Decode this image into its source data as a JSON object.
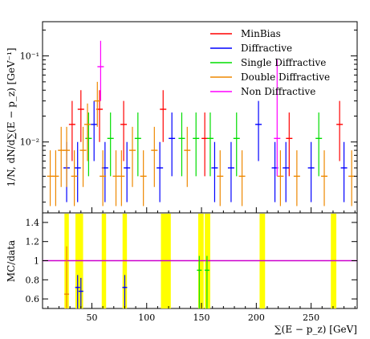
{
  "chart_data": {
    "type": "scatter",
    "title": "",
    "xlabel": "∑(E − p_z) [GeV]",
    "ylabel": "1/N, dN/d∑(E − p_z) [GeV⁻¹]",
    "ratio_ylabel": "MC/data",
    "xlim": [
      5,
      292
    ],
    "ylim": [
      0.0015,
      0.25
    ],
    "yscale": "log",
    "ratio_ylim": [
      0.5,
      1.5
    ],
    "x_ticks": [
      {
        "value": 50,
        "label": "50"
      },
      {
        "value": 100,
        "label": "100"
      },
      {
        "value": 150,
        "label": "150"
      },
      {
        "value": 200,
        "label": "200"
      },
      {
        "value": 250,
        "label": "250"
      }
    ],
    "y_ticks": [
      {
        "value": 0.01,
        "label": "10⁻²"
      },
      {
        "value": 0.1,
        "label": "10⁻¹"
      }
    ],
    "ratio_ticks": [
      {
        "value": 0.6,
        "label": "0.6"
      },
      {
        "value": 0.8,
        "label": "0.8"
      },
      {
        "value": 1.0,
        "label": "1"
      },
      {
        "value": 1.2,
        "label": "1.2"
      },
      {
        "value": 1.4,
        "label": "1.4"
      }
    ],
    "legend_position": "top-right",
    "series": [
      {
        "name": "MinBias",
        "color": "#ff0000",
        "points": [
          {
            "x": 32,
            "y": 0.016,
            "lo": 0.006,
            "hi": 0.03
          },
          {
            "x": 40,
            "y": 0.024,
            "lo": 0.01,
            "hi": 0.04
          },
          {
            "x": 57,
            "y": 0.024,
            "lo": 0.01,
            "hi": 0.04
          },
          {
            "x": 79,
            "y": 0.016,
            "lo": 0.006,
            "hi": 0.03
          },
          {
            "x": 115,
            "y": 0.024,
            "lo": 0.01,
            "hi": 0.04
          },
          {
            "x": 153,
            "y": 0.011,
            "lo": 0.004,
            "hi": 0.022
          },
          {
            "x": 230,
            "y": 0.011,
            "lo": 0.004,
            "hi": 0.022
          },
          {
            "x": 276,
            "y": 0.016,
            "lo": 0.006,
            "hi": 0.03
          }
        ]
      },
      {
        "name": "Diffractive",
        "color": "#0000ff",
        "points": [
          {
            "x": 27,
            "y": 0.005,
            "lo": 0.002,
            "hi": 0.01
          },
          {
            "x": 37,
            "y": 0.005,
            "lo": 0.002,
            "hi": 0.01
          },
          {
            "x": 52,
            "y": 0.016,
            "lo": 0.006,
            "hi": 0.03
          },
          {
            "x": 62,
            "y": 0.005,
            "lo": 0.002,
            "hi": 0.01
          },
          {
            "x": 82,
            "y": 0.005,
            "lo": 0.002,
            "hi": 0.01
          },
          {
            "x": 112,
            "y": 0.005,
            "lo": 0.002,
            "hi": 0.01
          },
          {
            "x": 123,
            "y": 0.011,
            "lo": 0.004,
            "hi": 0.022
          },
          {
            "x": 162,
            "y": 0.005,
            "lo": 0.002,
            "hi": 0.01
          },
          {
            "x": 177,
            "y": 0.005,
            "lo": 0.002,
            "hi": 0.01
          },
          {
            "x": 202,
            "y": 0.016,
            "lo": 0.006,
            "hi": 0.03
          },
          {
            "x": 217,
            "y": 0.005,
            "lo": 0.002,
            "hi": 0.01
          },
          {
            "x": 227,
            "y": 0.005,
            "lo": 0.002,
            "hi": 0.01
          },
          {
            "x": 250,
            "y": 0.005,
            "lo": 0.002,
            "hi": 0.01
          },
          {
            "x": 280,
            "y": 0.005,
            "lo": 0.002,
            "hi": 0.01
          }
        ]
      },
      {
        "name": "Single Diffractive",
        "color": "#00dd00",
        "points": [
          {
            "x": 47,
            "y": 0.011,
            "lo": 0.004,
            "hi": 0.022
          },
          {
            "x": 67,
            "y": 0.011,
            "lo": 0.004,
            "hi": 0.022
          },
          {
            "x": 92,
            "y": 0.011,
            "lo": 0.004,
            "hi": 0.022
          },
          {
            "x": 132,
            "y": 0.011,
            "lo": 0.004,
            "hi": 0.022
          },
          {
            "x": 145,
            "y": 0.011,
            "lo": 0.004,
            "hi": 0.022
          },
          {
            "x": 158,
            "y": 0.011,
            "lo": 0.004,
            "hi": 0.022
          },
          {
            "x": 182,
            "y": 0.011,
            "lo": 0.004,
            "hi": 0.022
          },
          {
            "x": 257,
            "y": 0.011,
            "lo": 0.004,
            "hi": 0.022
          }
        ]
      },
      {
        "name": "Double Diffractive",
        "color": "#ee8800",
        "points": [
          {
            "x": 12,
            "y": 0.004,
            "lo": 0.0018,
            "hi": 0.008
          },
          {
            "x": 17,
            "y": 0.004,
            "lo": 0.0018,
            "hi": 0.008
          },
          {
            "x": 22,
            "y": 0.008,
            "lo": 0.003,
            "hi": 0.015
          },
          {
            "x": 27,
            "y": 0.008,
            "lo": 0.003,
            "hi": 0.015
          },
          {
            "x": 34,
            "y": 0.004,
            "lo": 0.0018,
            "hi": 0.008
          },
          {
            "x": 42,
            "y": 0.008,
            "lo": 0.003,
            "hi": 0.015
          },
          {
            "x": 46,
            "y": 0.016,
            "lo": 0.006,
            "hi": 0.028
          },
          {
            "x": 55,
            "y": 0.03,
            "lo": 0.015,
            "hi": 0.05
          },
          {
            "x": 60,
            "y": 0.004,
            "lo": 0.0018,
            "hi": 0.008
          },
          {
            "x": 72,
            "y": 0.004,
            "lo": 0.0018,
            "hi": 0.008
          },
          {
            "x": 77,
            "y": 0.004,
            "lo": 0.0018,
            "hi": 0.008
          },
          {
            "x": 87,
            "y": 0.008,
            "lo": 0.003,
            "hi": 0.015
          },
          {
            "x": 97,
            "y": 0.004,
            "lo": 0.0018,
            "hi": 0.008
          },
          {
            "x": 107,
            "y": 0.008,
            "lo": 0.003,
            "hi": 0.015
          },
          {
            "x": 137,
            "y": 0.008,
            "lo": 0.003,
            "hi": 0.015
          },
          {
            "x": 167,
            "y": 0.004,
            "lo": 0.0018,
            "hi": 0.008
          },
          {
            "x": 187,
            "y": 0.004,
            "lo": 0.0018,
            "hi": 0.008
          },
          {
            "x": 222,
            "y": 0.004,
            "lo": 0.0018,
            "hi": 0.008
          },
          {
            "x": 237,
            "y": 0.004,
            "lo": 0.0018,
            "hi": 0.008
          },
          {
            "x": 262,
            "y": 0.004,
            "lo": 0.0018,
            "hi": 0.008
          },
          {
            "x": 287,
            "y": 0.004,
            "lo": 0.0018,
            "hi": 0.008
          }
        ]
      },
      {
        "name": "Non Diffractive",
        "color": "#ff00ff",
        "points": [
          {
            "x": 58,
            "y": 0.075,
            "lo": 0.03,
            "hi": 0.15
          },
          {
            "x": 219,
            "y": 0.011,
            "lo": 0.004,
            "hi": 0.09
          }
        ]
      }
    ],
    "ratio": {
      "bands": [
        {
          "x0": 25,
          "x1": 29
        },
        {
          "x0": 35,
          "x1": 42
        },
        {
          "x0": 59,
          "x1": 63
        },
        {
          "x0": 78,
          "x1": 82
        },
        {
          "x0": 113,
          "x1": 122
        },
        {
          "x0": 147,
          "x1": 152
        },
        {
          "x0": 153,
          "x1": 158
        },
        {
          "x0": 203,
          "x1": 208
        },
        {
          "x0": 268,
          "x1": 273
        }
      ],
      "band_color": "#ffff00",
      "reference_line": 1.0,
      "reference_color": "#cc00cc",
      "points": [
        {
          "x": 27,
          "y": 0.65,
          "lo": 0.5,
          "hi": 1.15,
          "color": "#ee8800"
        },
        {
          "x": 37,
          "y": 0.72,
          "lo": 0.5,
          "hi": 0.85,
          "color": "#0000ff"
        },
        {
          "x": 40,
          "y": 0.68,
          "lo": 0.5,
          "hi": 0.82,
          "color": "#0000ff"
        },
        {
          "x": 80,
          "y": 0.72,
          "lo": 0.5,
          "hi": 0.85,
          "color": "#0000ff"
        },
        {
          "x": 148,
          "y": 0.9,
          "lo": 0.5,
          "hi": 1.05,
          "color": "#00dd00"
        },
        {
          "x": 155,
          "y": 0.9,
          "lo": 0.5,
          "hi": 1.05,
          "color": "#00dd00"
        }
      ]
    }
  }
}
